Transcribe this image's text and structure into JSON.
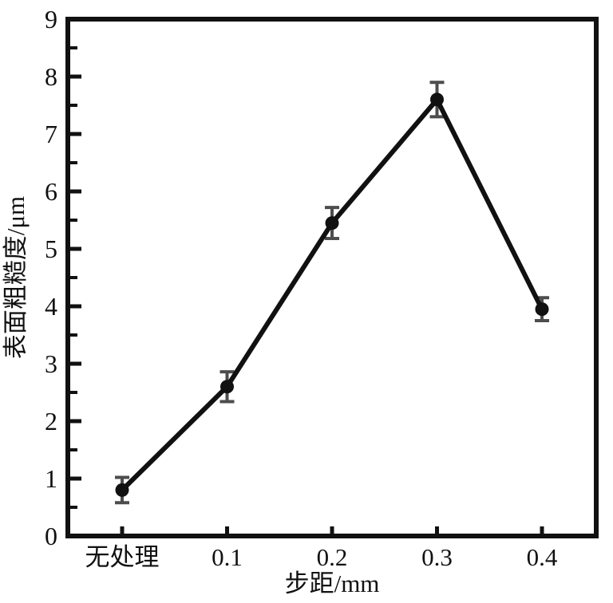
{
  "figure": {
    "description": "Line chart of surface roughness versus step distance with error bars"
  },
  "colors": {
    "background": "#ffffff",
    "axis": "#111111",
    "line": "#111111",
    "marker": "#111111",
    "error_bar": "#4d4d4d",
    "text": "#111111"
  },
  "chart_data": {
    "type": "line",
    "categories": [
      "无处理",
      "0.1",
      "0.2",
      "0.3",
      "0.4"
    ],
    "series": [
      {
        "name": "表面粗糙度",
        "values": [
          0.8,
          2.6,
          5.45,
          7.6,
          3.95
        ],
        "errors": [
          0.22,
          0.26,
          0.27,
          0.3,
          0.2
        ]
      }
    ],
    "title": "",
    "xlabel": "步距/mm",
    "ylabel": "表面粗糙度/μm",
    "ylim": [
      0,
      9
    ],
    "y_major_step": 1,
    "y_minor_step": 0.5,
    "y_tick_labels": [
      "0",
      "1",
      "2",
      "3",
      "4",
      "5",
      "6",
      "7",
      "8",
      "9"
    ],
    "grid": false,
    "legend": "none",
    "marker_shape": "filled-circle",
    "error_bar_caps": true
  }
}
